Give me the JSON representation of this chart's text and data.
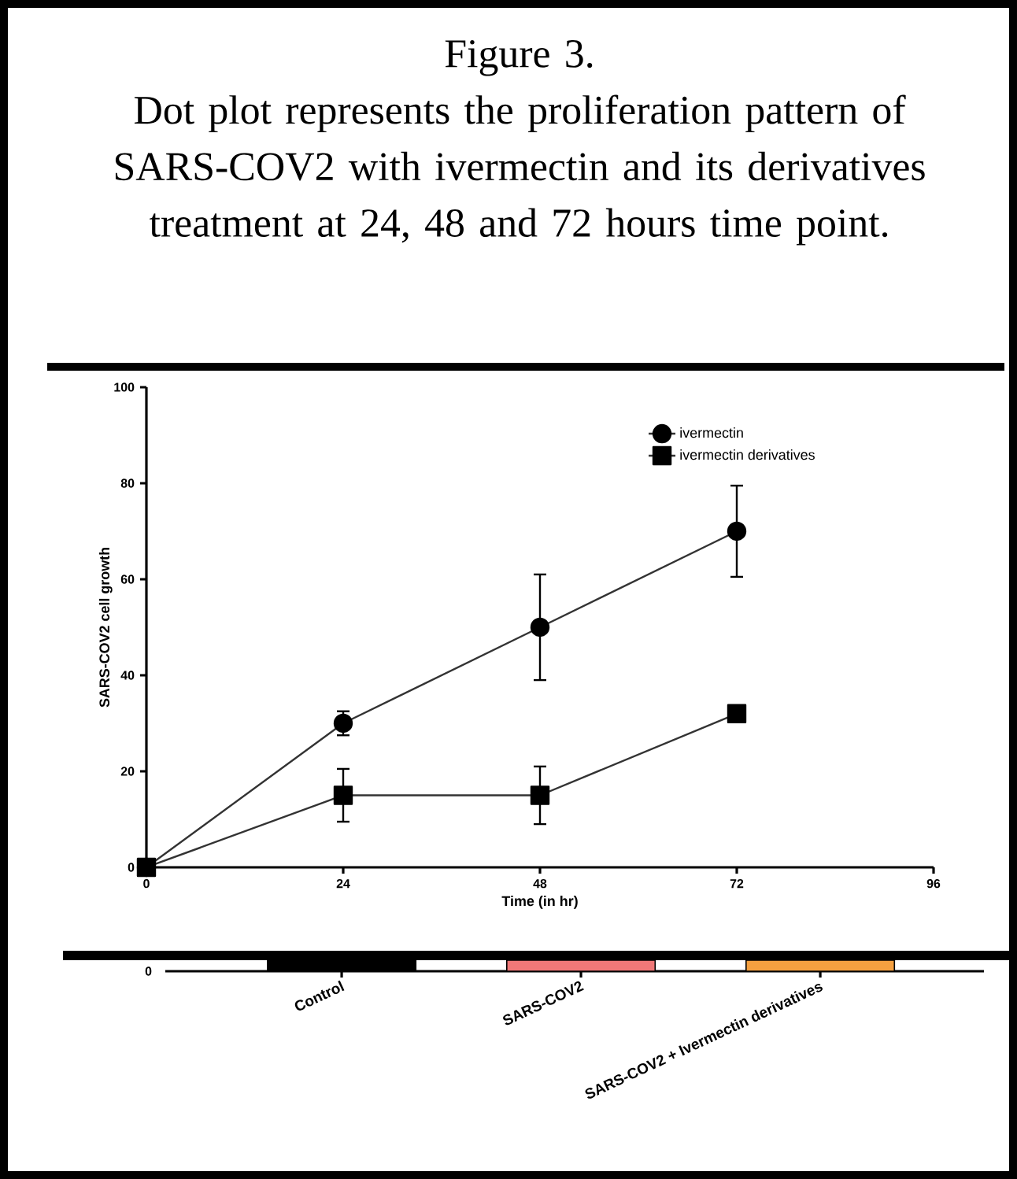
{
  "chart_data": [
    {
      "type": "line",
      "title": "Figure 3.",
      "subtitle": "Dot plot represents the proliferation pattern of SARS-COV2 with ivermectin and its derivatives treatment at 24, 48 and 72 hours time point.",
      "xlabel": "Time (in hr)",
      "ylabel": "SARS-COV2 cell growth",
      "x": [
        0,
        24,
        48,
        72
      ],
      "series": [
        {
          "name": "ivermectin",
          "color": "#000000",
          "marker": "circle",
          "values": [
            0,
            30,
            50,
            70
          ],
          "errors": [
            null,
            2.5,
            11,
            9.5
          ]
        },
        {
          "name": "ivermectin derivatives",
          "color": "#000000",
          "marker": "square",
          "values": [
            0,
            15,
            15,
            32
          ],
          "errors": [
            null,
            5.5,
            6,
            null
          ]
        }
      ],
      "xlim": [
        0,
        96
      ],
      "xticks": [
        0,
        24,
        48,
        72,
        96
      ],
      "ylim": [
        0,
        100
      ],
      "yticks": [
        0,
        20,
        40,
        60,
        80,
        100
      ],
      "grid": false,
      "legend": "top right",
      "line_style": "solid"
    },
    {
      "type": "other",
      "categories": [
        "Control",
        "SARS-COV2",
        "SARS-COV2 + Ivermectin derivatives"
      ],
      "colors": [
        "#000000",
        "#f07878",
        "#f5a040"
      ],
      "annotations": [
        "0"
      ]
    }
  ]
}
